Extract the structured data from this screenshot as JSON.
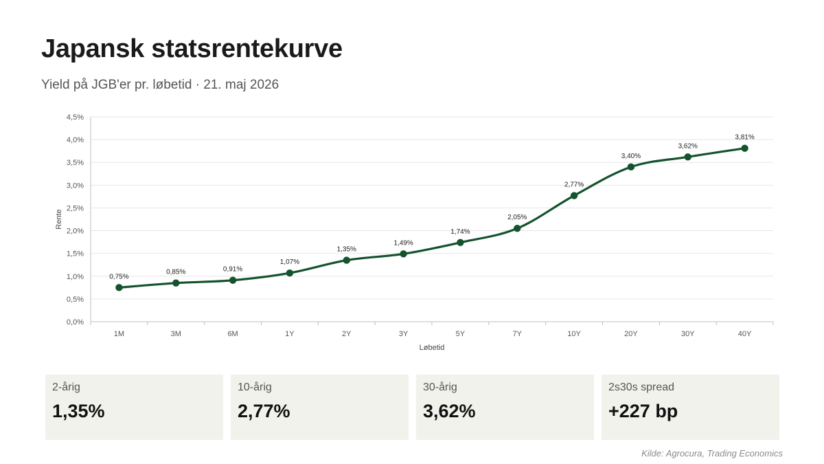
{
  "header": {
    "title": "Japansk statsrentekurve",
    "subtitle": "Yield på JGB'er pr. løbetid · 21. maj 2026"
  },
  "chart_data": {
    "type": "line",
    "title": "",
    "xlabel": "Løbetid",
    "ylabel": "Rente",
    "categories": [
      "1M",
      "3M",
      "6M",
      "1Y",
      "2Y",
      "3Y",
      "5Y",
      "7Y",
      "10Y",
      "20Y",
      "30Y",
      "40Y"
    ],
    "series": [
      {
        "values": [
          0.75,
          0.85,
          0.91,
          1.07,
          1.35,
          1.49,
          1.74,
          2.05,
          2.77,
          3.4,
          3.62,
          3.81
        ],
        "data_labels": [
          "0,75%",
          "0,85%",
          "0,91%",
          "1,07%",
          "1,35%",
          "1,49%",
          "1,74%",
          "2,05%",
          "2,77%",
          "3,40%",
          "3,62%",
          "3,81%"
        ]
      }
    ],
    "ylim": [
      0,
      4.5
    ],
    "yticks": [
      0,
      0.5,
      1.0,
      1.5,
      2.0,
      2.5,
      3.0,
      3.5,
      4.0,
      4.5
    ],
    "ytick_labels": [
      "0,0%",
      "0,5%",
      "1,0%",
      "1,5%",
      "2,0%",
      "2,5%",
      "3,0%",
      "3,5%",
      "4,0%",
      "4,5%"
    ],
    "grid": true,
    "smooth": true,
    "line_color": "#14532d",
    "marker_color": "#14532d"
  },
  "kpis": [
    {
      "label": "2-årig",
      "value": "1,35%"
    },
    {
      "label": "10-årig",
      "value": "2,77%"
    },
    {
      "label": "30-årig",
      "value": "3,62%"
    },
    {
      "label": "2s30s spread",
      "value": "+227 bp"
    }
  ],
  "footer": {
    "source": "Kilde: Agrocura, Trading Economics"
  }
}
